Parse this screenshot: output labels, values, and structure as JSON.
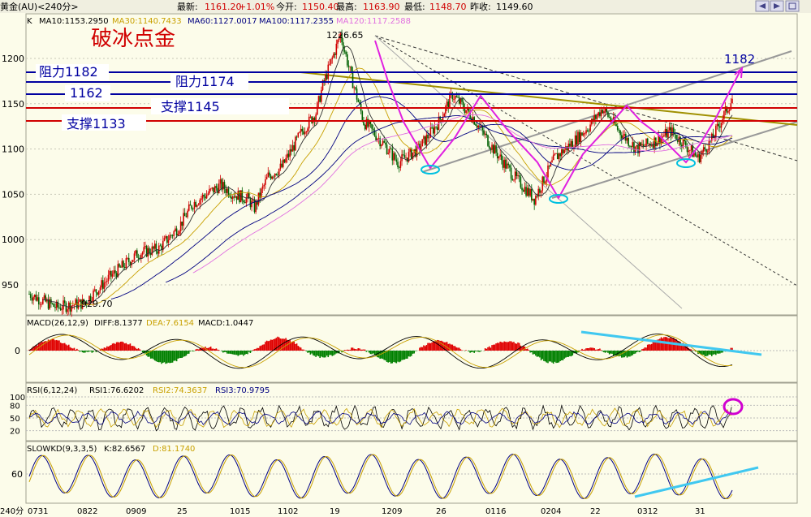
{
  "header": {
    "symbol": "黄金(AU)<240分>",
    "latest_label": "最新:",
    "latest": "1161.20",
    "change": "+1.01%",
    "open_label": "今开:",
    "open": "1150.40",
    "high_label": "最高:",
    "high": "1163.90",
    "low_label": "最低:",
    "low": "1148.70",
    "prev_label": "昨收:",
    "prev": "1149.60",
    "period_label": "240分"
  },
  "ma_legend": [
    {
      "text": "K",
      "color": "#000000"
    },
    {
      "text": "MA10:1153.2950",
      "color": "#000000"
    },
    {
      "text": "MA30:1140.7433",
      "color": "#c8a000"
    },
    {
      "text": "MA60:1127.0017",
      "color": "#000080"
    },
    {
      "text": "MA100:1117.2355",
      "color": "#000080"
    },
    {
      "text": "MA120:1117.2588",
      "color": "#e070e0"
    }
  ],
  "annotations": {
    "brand": "破冰点金",
    "res_1182": "阻力1182",
    "res_1174": "阻力1174",
    "lvl_1162": "1162",
    "sup_1145": "支撑1145",
    "sup_1133": "支撑1133",
    "target_1182": "1182",
    "peak_label": "1226.65",
    "low_label": "929.70"
  },
  "panels": {
    "macd": {
      "label": "MACD(26,12,9)",
      "items": [
        {
          "text": "DIFF:8.1377",
          "color": "#000000"
        },
        {
          "text": "DEA:7.6154",
          "color": "#c8a000"
        },
        {
          "text": "MACD:1.0447",
          "color": "#000000"
        }
      ]
    },
    "rsi": {
      "label": "RSI(6,12,24)",
      "items": [
        {
          "text": "RSI1:76.6202",
          "color": "#000000"
        },
        {
          "text": "RSI2:74.3637",
          "color": "#c8a000"
        },
        {
          "text": "RSI3:70.9795",
          "color": "#000080"
        }
      ]
    },
    "kd": {
      "label": "SLOWKD(9,3,3,5)",
      "items": [
        {
          "text": "K:82.6567",
          "color": "#000000"
        },
        {
          "text": "D:81.1740",
          "color": "#c8a000"
        }
      ]
    }
  },
  "chart_data": {
    "type": "line",
    "y_ticks": [
      950,
      1000,
      1050,
      1100,
      1150,
      1200
    ],
    "x_ticks": [
      "0731",
      "0822",
      "0909",
      "25",
      "1015",
      "1102",
      "19",
      "1209",
      "26",
      "0116",
      "0204",
      "22",
      "0312",
      "31"
    ],
    "price_path": [
      [
        0,
        940
      ],
      [
        20,
        925
      ],
      [
        40,
        930
      ],
      [
        60,
        960
      ],
      [
        80,
        985
      ],
      [
        95,
        990
      ],
      [
        110,
        1015
      ],
      [
        120,
        1040
      ],
      [
        140,
        1060
      ],
      [
        150,
        1050
      ],
      [
        160,
        1045
      ],
      [
        165,
        1035
      ],
      [
        175,
        1070
      ],
      [
        185,
        1080
      ],
      [
        200,
        1120
      ],
      [
        210,
        1140
      ],
      [
        215,
        1170
      ],
      [
        222,
        1200
      ],
      [
        228,
        1226.65
      ],
      [
        235,
        1185
      ],
      [
        245,
        1130
      ],
      [
        260,
        1105
      ],
      [
        270,
        1085
      ],
      [
        285,
        1100
      ],
      [
        300,
        1130
      ],
      [
        310,
        1160
      ],
      [
        325,
        1135
      ],
      [
        340,
        1100
      ],
      [
        355,
        1070
      ],
      [
        370,
        1045
      ],
      [
        385,
        1090
      ],
      [
        400,
        1110
      ],
      [
        410,
        1125
      ],
      [
        420,
        1145
      ],
      [
        432,
        1120
      ],
      [
        445,
        1100
      ],
      [
        460,
        1110
      ],
      [
        470,
        1120
      ],
      [
        480,
        1105
      ],
      [
        490,
        1090
      ],
      [
        500,
        1110
      ],
      [
        508,
        1135
      ],
      [
        515,
        1155
      ]
    ],
    "support_resistance": [
      1182,
      1174,
      1162,
      1145,
      1133
    ],
    "swing_low": 929.7,
    "swing_high": 1226.65,
    "macd_range": [
      -30,
      30
    ],
    "rsi_ticks": [
      100,
      80,
      50,
      20
    ],
    "kd_ticks": [
      60
    ]
  }
}
